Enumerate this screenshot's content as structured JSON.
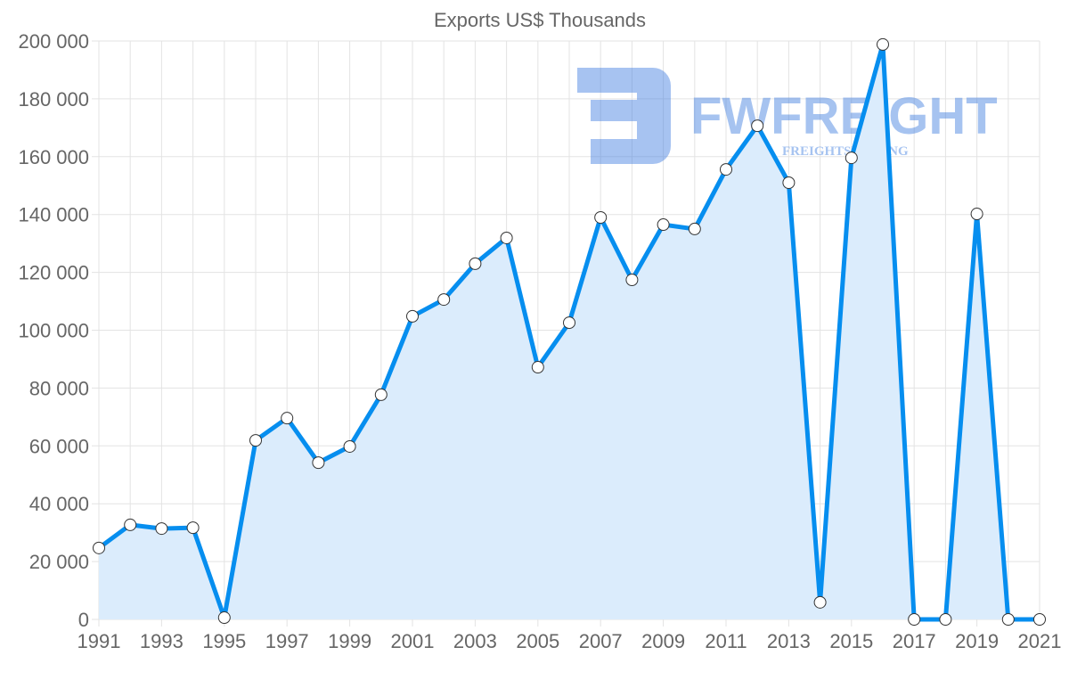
{
  "chart_data": {
    "type": "area",
    "title": "Exports US$ Thousands",
    "xlabel": "",
    "ylabel": "",
    "x": [
      1991,
      1992,
      1993,
      1994,
      1995,
      1996,
      1997,
      1998,
      1999,
      2000,
      2001,
      2002,
      2003,
      2004,
      2005,
      2006,
      2007,
      2008,
      2009,
      2010,
      2011,
      2012,
      2013,
      2014,
      2015,
      2016,
      2017,
      2018,
      2019,
      2020,
      2021
    ],
    "series": [
      {
        "name": "Exports US$ Thousands",
        "values": [
          24700,
          32700,
          31400,
          31700,
          600,
          61900,
          69600,
          54200,
          59800,
          77700,
          104800,
          110600,
          123000,
          131900,
          87200,
          102600,
          139000,
          117400,
          136500,
          135000,
          155600,
          170700,
          151000,
          5900,
          159600,
          198800,
          0,
          0,
          140200,
          0,
          0
        ],
        "color": "#068eef",
        "fill": "#dbecfc"
      }
    ],
    "xlim": [
      1991,
      2021
    ],
    "ylim": [
      0,
      200000
    ],
    "y_ticks": [
      "0",
      "20 000",
      "40 000",
      "60 000",
      "80 000",
      "100 000",
      "120 000",
      "140 000",
      "160 000",
      "180 000",
      "200 000"
    ],
    "x_ticks": [
      "1991",
      "1993",
      "1995",
      "1997",
      "1999",
      "2001",
      "2003",
      "2005",
      "2007",
      "2009",
      "2011",
      "2013",
      "2015",
      "2017",
      "2019",
      "2021"
    ],
    "grid": true,
    "legend": "none"
  },
  "watermark": {
    "brand": "FWFREIGHT",
    "tagline": "FREIGHTSHIPPING"
  }
}
